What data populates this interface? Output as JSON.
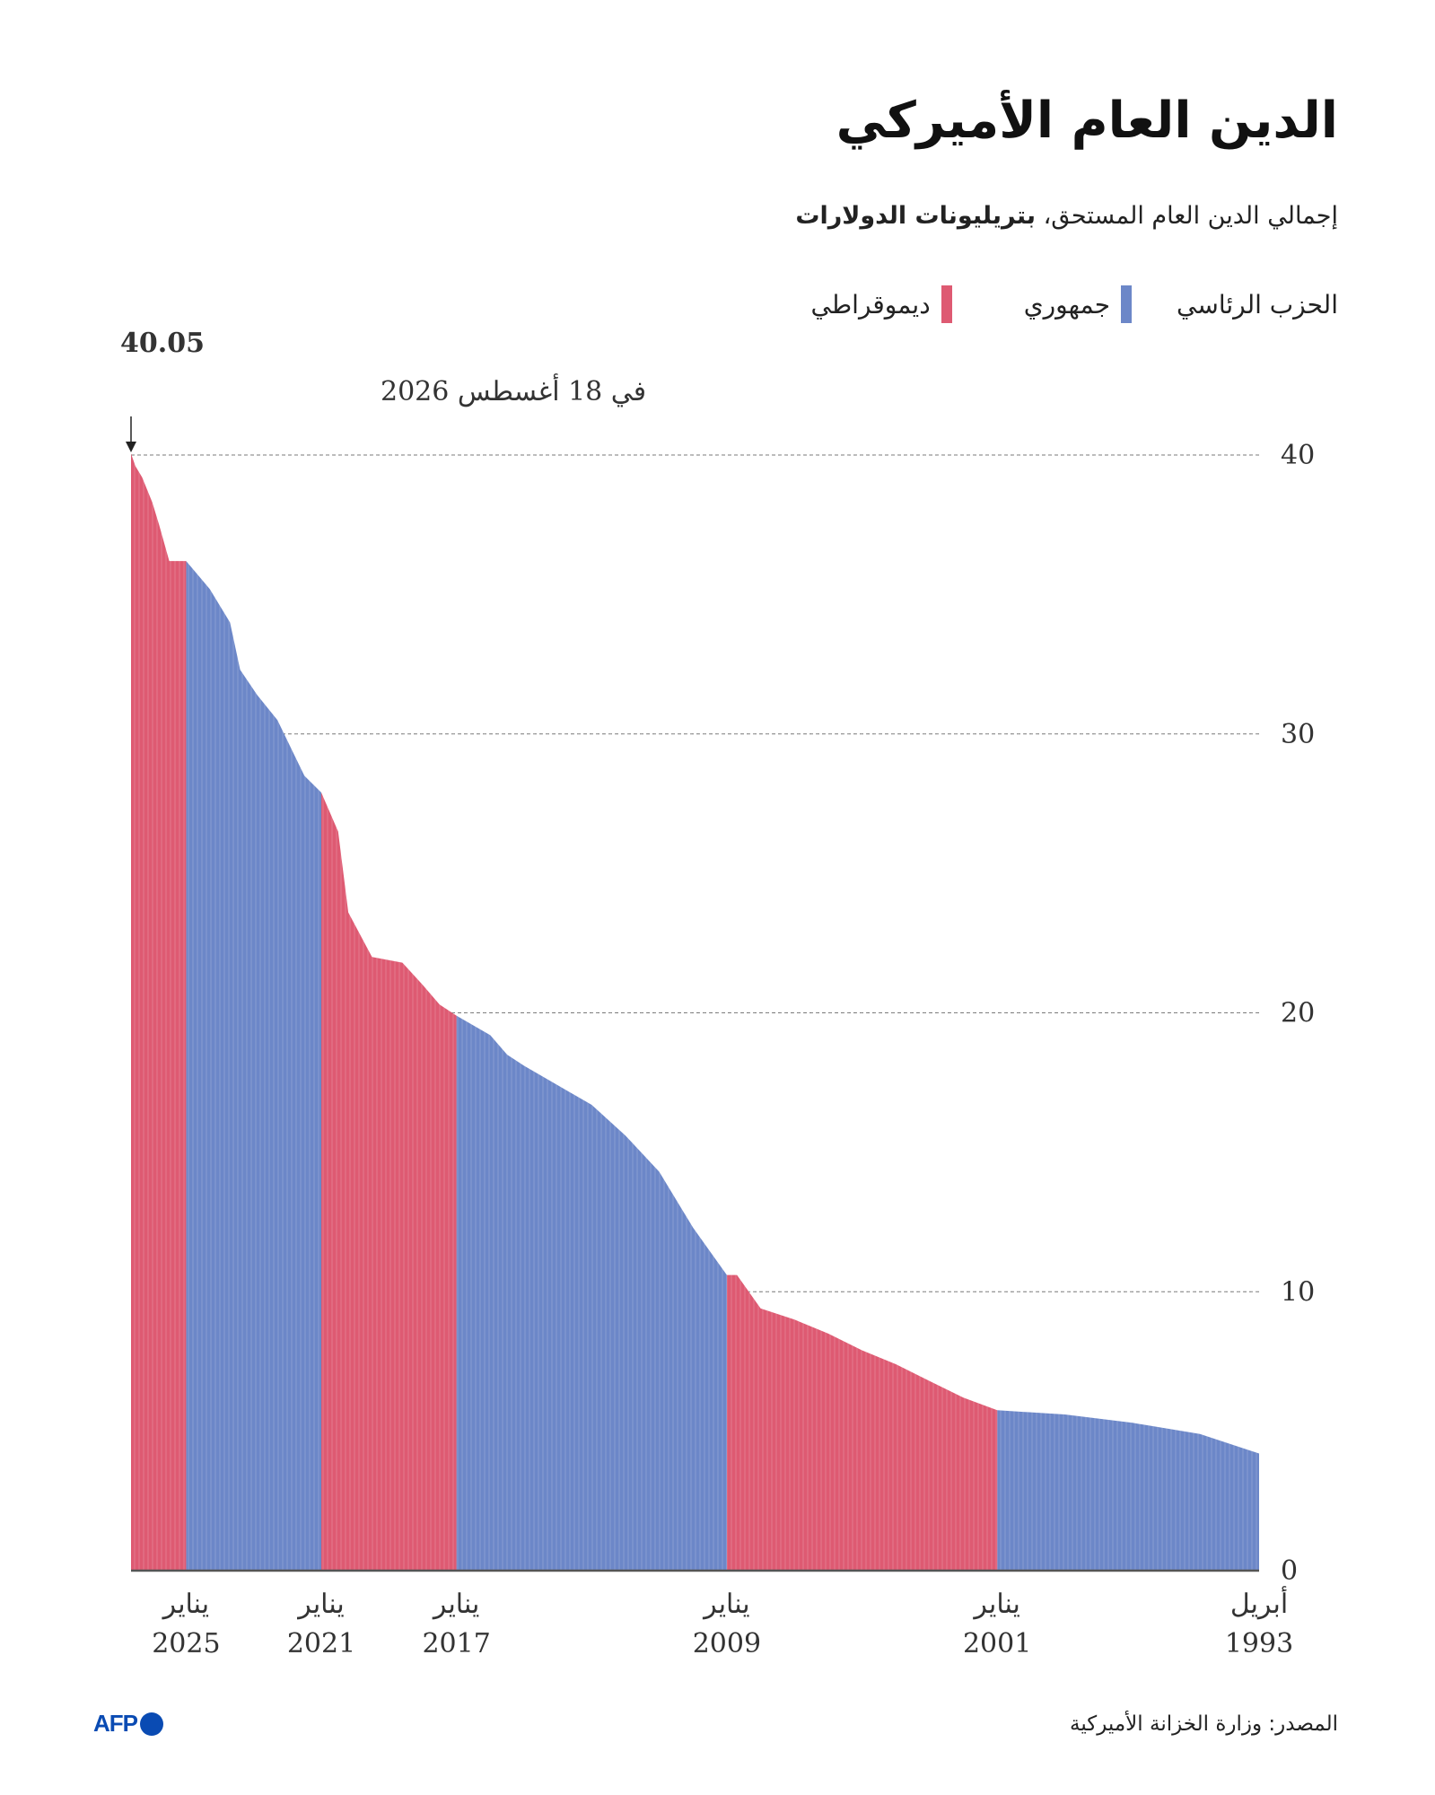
{
  "title": "الدين العام الأميركي",
  "subtitle": {
    "main": "إجمالي الدين العام المستحق، ",
    "unit": "بتريليونات الدولارات"
  },
  "legend": {
    "title": "الحزب الرئاسي",
    "items": [
      {
        "label": "جمهوري",
        "color": "#6c87c8"
      },
      {
        "label": "ديموقراطي",
        "color": "#de5a72"
      }
    ]
  },
  "annotation": {
    "value": "40.05",
    "date": "في 18 أغسطس 2026",
    "arrow": "↓"
  },
  "source": "المصدر: وزارة الخزانة الأميركية",
  "logo": {
    "text": "AFP"
  },
  "chart_data": {
    "type": "area",
    "x_direction": "right-to-left",
    "ylim": [
      0,
      40
    ],
    "yticks": [
      0,
      10,
      20,
      30,
      40
    ],
    "grid": true,
    "xtick_labels": [
      {
        "x": 1993.25,
        "month": "أبريل",
        "year": "1993"
      },
      {
        "x": 2001.0,
        "month": "يناير",
        "year": "2001"
      },
      {
        "x": 2009.0,
        "month": "يناير",
        "year": "2009"
      },
      {
        "x": 2017.0,
        "month": "يناير",
        "year": "2017"
      },
      {
        "x": 2021.0,
        "month": "يناير",
        "year": "2021"
      },
      {
        "x": 2025.0,
        "month": "يناير",
        "year": "2025"
      }
    ],
    "x_range": [
      1993.25,
      2026.63
    ],
    "series": [
      {
        "name": "جمهوري",
        "color": "#6c87c8",
        "points": [
          [
            1993.25,
            4.2
          ],
          [
            1995.0,
            4.9
          ],
          [
            1997.0,
            5.3
          ],
          [
            1999.0,
            5.6
          ],
          [
            2001.0,
            5.75
          ]
        ]
      },
      {
        "name": "ديموقراطي",
        "color": "#de5a72",
        "points": [
          [
            2001.0,
            5.75
          ],
          [
            2002.0,
            6.2
          ],
          [
            2003.0,
            6.8
          ],
          [
            2004.0,
            7.4
          ],
          [
            2005.0,
            7.9
          ],
          [
            2006.0,
            8.5
          ],
          [
            2007.0,
            9.0
          ],
          [
            2008.0,
            9.4
          ],
          [
            2008.7,
            10.6
          ],
          [
            2009.0,
            10.6
          ]
        ]
      },
      {
        "name": "جمهوري",
        "color": "#6c87c8",
        "points": [
          [
            2009.0,
            10.6
          ],
          [
            2010.0,
            12.3
          ],
          [
            2011.0,
            14.3
          ],
          [
            2012.0,
            15.6
          ],
          [
            2013.0,
            16.7
          ],
          [
            2014.0,
            17.4
          ],
          [
            2015.0,
            18.1
          ],
          [
            2015.5,
            18.5
          ],
          [
            2016.0,
            19.2
          ],
          [
            2017.0,
            19.9
          ]
        ]
      },
      {
        "name": "ديموقراطي",
        "color": "#de5a72",
        "points": [
          [
            2017.0,
            19.9
          ],
          [
            2017.5,
            20.3
          ],
          [
            2018.0,
            21.0
          ],
          [
            2018.6,
            21.8
          ],
          [
            2019.5,
            22.0
          ],
          [
            2020.2,
            23.6
          ],
          [
            2020.5,
            26.5
          ],
          [
            2021.0,
            27.9
          ]
        ]
      },
      {
        "name": "جمهوري",
        "color": "#6c87c8",
        "points": [
          [
            2021.0,
            27.9
          ],
          [
            2021.5,
            28.5
          ],
          [
            2021.9,
            29.5
          ],
          [
            2022.3,
            30.5
          ],
          [
            2022.9,
            31.4
          ],
          [
            2023.4,
            32.3
          ],
          [
            2023.7,
            34.0
          ],
          [
            2024.3,
            35.2
          ],
          [
            2025.0,
            36.2
          ]
        ]
      },
      {
        "name": "ديموقراطي",
        "color": "#de5a72",
        "points": [
          [
            2025.0,
            36.2
          ],
          [
            2025.5,
            36.2
          ],
          [
            2025.8,
            37.5
          ],
          [
            2026.0,
            38.3
          ],
          [
            2026.3,
            39.2
          ],
          [
            2026.5,
            39.6
          ],
          [
            2026.63,
            40.05
          ]
        ]
      }
    ]
  }
}
